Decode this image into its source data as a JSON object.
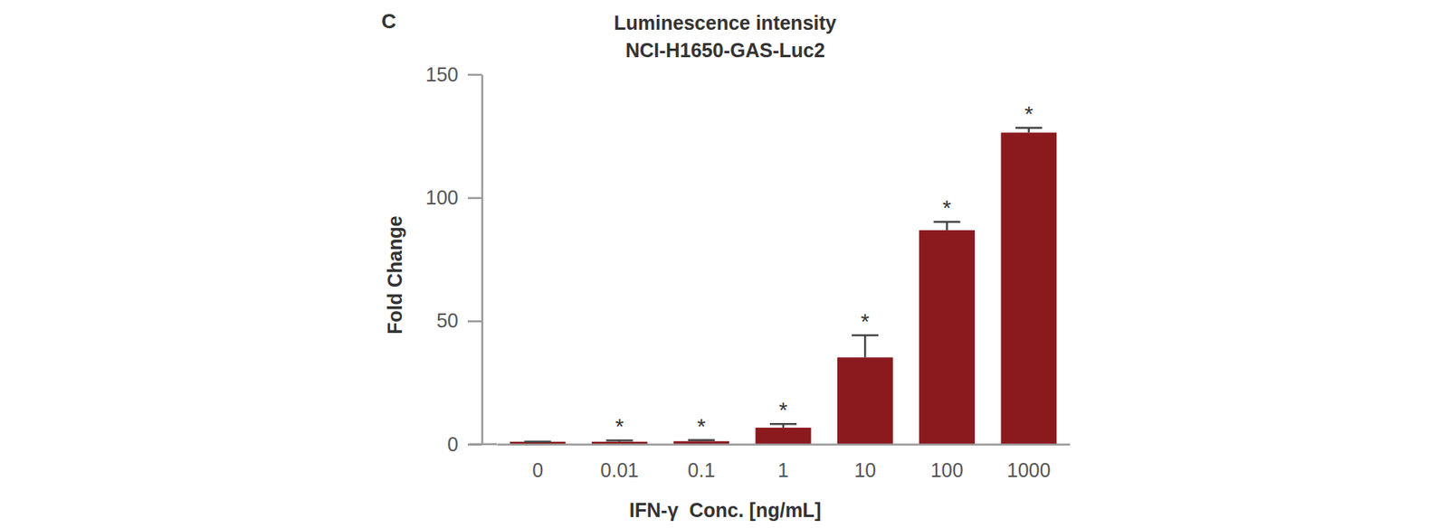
{
  "chart_data": {
    "type": "bar",
    "panel_label": "C",
    "title": [
      "Luminescence intensity",
      "NCI-H1650-GAS-Luc2"
    ],
    "x_label": "IFN-γ  Conc. [ng/mL]",
    "y_label": "Fold Change",
    "categories": [
      "0",
      "0.01",
      "0.1",
      "1",
      "10",
      "100",
      "1000"
    ],
    "values": [
      1,
      1,
      1.2,
      6.7,
      35.2,
      86.8,
      126.4
    ],
    "errors": [
      0,
      0.5,
      0.5,
      1.5,
      9,
      3.4,
      1.9
    ],
    "annotations": [
      null,
      "*",
      "*",
      "*",
      "*",
      "*",
      "*"
    ],
    "color": "#8b1a1f",
    "ylim": [
      0,
      150
    ],
    "yticks": [
      0,
      50,
      100,
      150
    ],
    "grid": false
  }
}
